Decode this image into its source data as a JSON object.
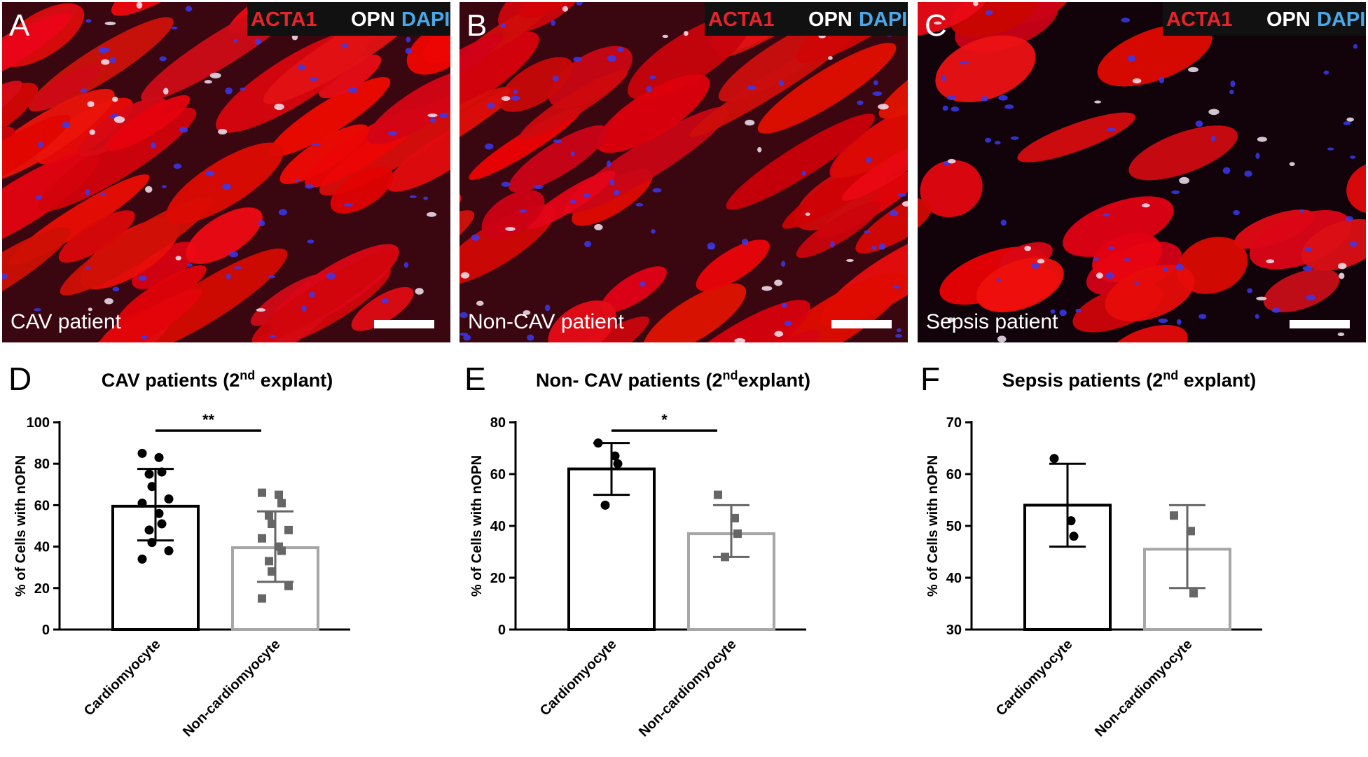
{
  "image_panels": [
    {
      "letter": "A",
      "caption": "CAV patient",
      "legend": [
        "ACTA1",
        "OPN",
        "DAPI"
      ]
    },
    {
      "letter": "B",
      "caption": "Non-CAV patient",
      "legend": [
        "ACTA1",
        "OPN",
        "DAPI"
      ]
    },
    {
      "letter": "C",
      "caption": "Sepsis patient",
      "legend": [
        "ACTA1",
        "OPN",
        "DAPI"
      ]
    }
  ],
  "legend_colors": {
    "ACTA1": "#e8242a",
    "OPN": "#ffffff",
    "DAPI": "#4aa8e8"
  },
  "chart_data": [
    {
      "type": "bar",
      "panel": "D",
      "title_main": "CAV patients (2",
      "title_sup": "nd",
      "title_end": " explant)",
      "ylabel": "% of Cells with nOPN",
      "ylim": [
        0,
        100
      ],
      "yticks": [
        0,
        20,
        40,
        60,
        80,
        100
      ],
      "categories": [
        "Cardiomyocyte",
        "Non-cardiomyocyte"
      ],
      "means": [
        59.5,
        39.5
      ],
      "sd_low": [
        43,
        23
      ],
      "sd_high": [
        77.5,
        57
      ],
      "points": [
        [
          85,
          83,
          76,
          75,
          69,
          63,
          61,
          56,
          51,
          48,
          42,
          38,
          34
        ],
        [
          66,
          65,
          61,
          55,
          51,
          48,
          44,
          40,
          38,
          33,
          28,
          21,
          15
        ]
      ],
      "significance": "**",
      "bar_colors": [
        "#000000",
        "#a6a6a6"
      ],
      "marker_colors": [
        "#000000",
        "#666666"
      ]
    },
    {
      "type": "bar",
      "panel": "E",
      "title_main": "Non- CAV patients (2",
      "title_sup": "nd",
      "title_end": "explant)",
      "ylabel": "% of Cells with nOPN",
      "ylim": [
        0,
        80
      ],
      "yticks": [
        0,
        20,
        40,
        60,
        80
      ],
      "categories": [
        "Cardiomyocyte",
        "Non-cardiomyocyte"
      ],
      "means": [
        62,
        37
      ],
      "sd_low": [
        52,
        28
      ],
      "sd_high": [
        72,
        48
      ],
      "points": [
        [
          72,
          67,
          64,
          48
        ],
        [
          52,
          43,
          37,
          28
        ]
      ],
      "significance": "*",
      "bar_colors": [
        "#000000",
        "#a6a6a6"
      ],
      "marker_colors": [
        "#000000",
        "#666666"
      ]
    },
    {
      "type": "bar",
      "panel": "F",
      "title_main": "Sepsis patients (2",
      "title_sup": "nd",
      "title_end": " explant)",
      "ylabel": "% of Cells with nOPN",
      "ylim": [
        30,
        70
      ],
      "yticks": [
        30,
        40,
        50,
        60,
        70
      ],
      "categories": [
        "Cardiomyocyte",
        "Non-cardiomyocyte"
      ],
      "means": [
        54,
        45.5
      ],
      "sd_low": [
        46,
        38
      ],
      "sd_high": [
        62,
        54
      ],
      "points": [
        [
          63,
          51,
          48
        ],
        [
          52,
          49,
          37
        ]
      ],
      "significance": "",
      "bar_colors": [
        "#000000",
        "#a6a6a6"
      ],
      "marker_colors": [
        "#000000",
        "#666666"
      ]
    }
  ]
}
